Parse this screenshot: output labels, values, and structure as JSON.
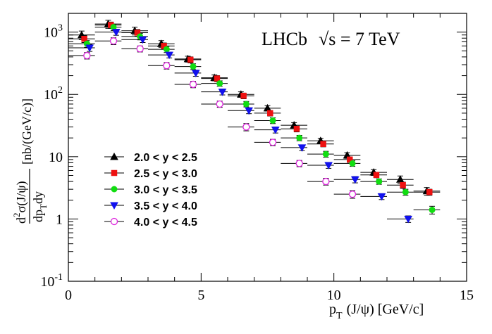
{
  "chart_data": {
    "type": "scatter",
    "title": "",
    "annotation": {
      "experiment": "LHCb",
      "energy": "√s = 7 TeV"
    },
    "xlabel": "p_T (J/ψ) [GeV/c]",
    "xlabel_parts": {
      "p": "p",
      "T": "T",
      "rest": "(J/ψ) [GeV/c]"
    },
    "ylabel_parts": {
      "num": "d",
      "num_sup": "2",
      "num_rest": "σ(J/ψ)",
      "den_p": "dp",
      "den_T": "T",
      "den_rest": "dy",
      "units": "[nb/(GeV/c)]"
    },
    "xlim": [
      0,
      15
    ],
    "ylim": [
      0.1,
      2000
    ],
    "yscale": "log",
    "x_ticks": [
      {
        "value": 0,
        "label": "0"
      },
      {
        "value": 5,
        "label": "5"
      },
      {
        "value": 10,
        "label": "10"
      },
      {
        "value": 15,
        "label": "15"
      }
    ],
    "y_ticks": [
      {
        "value": 0.1,
        "base": "10",
        "exp": "-1"
      },
      {
        "value": 1,
        "base": "1",
        "exp": ""
      },
      {
        "value": 10,
        "base": "10",
        "exp": ""
      },
      {
        "value": 100,
        "base": "10",
        "exp": "2"
      },
      {
        "value": 1000,
        "base": "10",
        "exp": "3"
      }
    ],
    "legend_position": "center-left",
    "series": [
      {
        "name": "2.0 < y < 2.5",
        "marker": "triangle-up",
        "color": "#000000",
        "filled": true,
        "points": [
          {
            "x": 0.5,
            "y": 900
          },
          {
            "x": 1.5,
            "y": 1350
          },
          {
            "x": 2.5,
            "y": 1050
          },
          {
            "x": 3.5,
            "y": 650
          },
          {
            "x": 4.5,
            "y": 370
          },
          {
            "x": 5.5,
            "y": 185
          },
          {
            "x": 6.5,
            "y": 100
          },
          {
            "x": 7.5,
            "y": 60
          },
          {
            "x": 8.5,
            "y": 32
          },
          {
            "x": 9.5,
            "y": 18
          },
          {
            "x": 10.5,
            "y": 10.5
          },
          {
            "x": 11.5,
            "y": 5.6
          },
          {
            "x": 12.5,
            "y": 4.3
          },
          {
            "x": 13.5,
            "y": 2.8
          }
        ],
        "errors": [
          {
            "ylo": 140,
            "yhi": 140
          },
          {
            "ylo": 200,
            "yhi": 200
          },
          {
            "ylo": 150,
            "yhi": 150
          },
          {
            "ylo": 80,
            "yhi": 80
          },
          {
            "ylo": 40,
            "yhi": 40
          },
          {
            "ylo": 20,
            "yhi": 20
          },
          {
            "ylo": 10,
            "yhi": 10
          },
          {
            "ylo": 6,
            "yhi": 6
          },
          {
            "ylo": 3.2,
            "yhi": 3.2
          },
          {
            "ylo": 1.8,
            "yhi": 1.8
          },
          {
            "ylo": 1.1,
            "yhi": 1.1
          },
          {
            "ylo": 0.6,
            "yhi": 0.6
          },
          {
            "ylo": 0.6,
            "yhi": 0.6
          },
          {
            "ylo": 0.4,
            "yhi": 0.4
          }
        ]
      },
      {
        "name": "2.5 < y < 3.0",
        "marker": "square",
        "color": "#ee1111",
        "filled": true,
        "points": [
          {
            "x": 0.6,
            "y": 780
          },
          {
            "x": 1.6,
            "y": 1300
          },
          {
            "x": 2.6,
            "y": 980
          },
          {
            "x": 3.6,
            "y": 600
          },
          {
            "x": 4.6,
            "y": 360
          },
          {
            "x": 5.6,
            "y": 180
          },
          {
            "x": 6.6,
            "y": 95
          },
          {
            "x": 7.6,
            "y": 50
          },
          {
            "x": 8.6,
            "y": 28
          },
          {
            "x": 9.6,
            "y": 16
          },
          {
            "x": 10.6,
            "y": 9
          },
          {
            "x": 11.6,
            "y": 5.1
          },
          {
            "x": 12.6,
            "y": 3.5
          },
          {
            "x": 13.6,
            "y": 2.7
          }
        ],
        "errors": [
          {
            "ylo": 100,
            "yhi": 100
          },
          {
            "ylo": 150,
            "yhi": 150
          },
          {
            "ylo": 120,
            "yhi": 120
          },
          {
            "ylo": 70,
            "yhi": 70
          },
          {
            "ylo": 40,
            "yhi": 40
          },
          {
            "ylo": 20,
            "yhi": 20
          },
          {
            "ylo": 10,
            "yhi": 10
          },
          {
            "ylo": 5,
            "yhi": 5
          },
          {
            "ylo": 3,
            "yhi": 3
          },
          {
            "ylo": 1.6,
            "yhi": 1.6
          },
          {
            "ylo": 0.9,
            "yhi": 0.9
          },
          {
            "ylo": 0.5,
            "yhi": 0.5
          },
          {
            "ylo": 0.4,
            "yhi": 0.4
          },
          {
            "ylo": 0.3,
            "yhi": 0.3
          }
        ]
      },
      {
        "name": "3.0 < y < 3.5",
        "marker": "circle",
        "color": "#11dd11",
        "filled": true,
        "points": [
          {
            "x": 0.7,
            "y": 650
          },
          {
            "x": 1.7,
            "y": 1200
          },
          {
            "x": 2.7,
            "y": 850
          },
          {
            "x": 3.7,
            "y": 530
          },
          {
            "x": 4.7,
            "y": 280
          },
          {
            "x": 5.7,
            "y": 150
          },
          {
            "x": 6.7,
            "y": 70
          },
          {
            "x": 7.7,
            "y": 38
          },
          {
            "x": 8.7,
            "y": 20
          },
          {
            "x": 9.7,
            "y": 11
          },
          {
            "x": 10.7,
            "y": 7.8
          },
          {
            "x": 11.7,
            "y": 4
          },
          {
            "x": 12.7,
            "y": 2.7
          },
          {
            "x": 13.7,
            "y": 1.4
          }
        ],
        "errors": [
          {
            "ylo": 80,
            "yhi": 80
          },
          {
            "ylo": 140,
            "yhi": 140
          },
          {
            "ylo": 100,
            "yhi": 100
          },
          {
            "ylo": 60,
            "yhi": 60
          },
          {
            "ylo": 30,
            "yhi": 30
          },
          {
            "ylo": 15,
            "yhi": 15
          },
          {
            "ylo": 7,
            "yhi": 7
          },
          {
            "ylo": 4,
            "yhi": 4
          },
          {
            "ylo": 2,
            "yhi": 2
          },
          {
            "ylo": 1.2,
            "yhi": 1.2
          },
          {
            "ylo": 0.8,
            "yhi": 0.8
          },
          {
            "ylo": 0.4,
            "yhi": 0.4
          },
          {
            "ylo": 0.3,
            "yhi": 0.3
          },
          {
            "ylo": 0.2,
            "yhi": 0.2
          }
        ]
      },
      {
        "name": "3.5 < y < 4.0",
        "marker": "triangle-down",
        "color": "#1111ee",
        "filled": true,
        "points": [
          {
            "x": 0.8,
            "y": 560
          },
          {
            "x": 1.8,
            "y": 1000
          },
          {
            "x": 2.8,
            "y": 760
          },
          {
            "x": 3.8,
            "y": 430
          },
          {
            "x": 4.8,
            "y": 220
          },
          {
            "x": 5.8,
            "y": 110
          },
          {
            "x": 6.8,
            "y": 55
          },
          {
            "x": 7.8,
            "y": 27
          },
          {
            "x": 8.8,
            "y": 14
          },
          {
            "x": 9.8,
            "y": 7.3
          },
          {
            "x": 10.8,
            "y": 4.3
          },
          {
            "x": 11.8,
            "y": 2.3
          },
          {
            "x": 12.8,
            "y": 1.0
          }
        ],
        "errors": [
          {
            "ylo": 70,
            "yhi": 70
          },
          {
            "ylo": 110,
            "yhi": 110
          },
          {
            "ylo": 80,
            "yhi": 80
          },
          {
            "ylo": 45,
            "yhi": 45
          },
          {
            "ylo": 25,
            "yhi": 25
          },
          {
            "ylo": 12,
            "yhi": 12
          },
          {
            "ylo": 6,
            "yhi": 6
          },
          {
            "ylo": 3,
            "yhi": 3
          },
          {
            "ylo": 1.5,
            "yhi": 1.5
          },
          {
            "ylo": 0.8,
            "yhi": 0.8
          },
          {
            "ylo": 0.5,
            "yhi": 0.5
          },
          {
            "ylo": 0.25,
            "yhi": 0.25
          },
          {
            "ylo": 0.12,
            "yhi": 0.12
          }
        ]
      },
      {
        "name": "4.0 < y < 4.5",
        "marker": "circle-open",
        "color": "#dd22dd",
        "filled": false,
        "points": [
          {
            "x": 0.7,
            "y": 420
          },
          {
            "x": 1.7,
            "y": 720
          },
          {
            "x": 2.7,
            "y": 540
          },
          {
            "x": 3.7,
            "y": 290
          },
          {
            "x": 4.7,
            "y": 145
          },
          {
            "x": 5.7,
            "y": 70
          },
          {
            "x": 6.7,
            "y": 30
          },
          {
            "x": 7.7,
            "y": 17
          },
          {
            "x": 8.7,
            "y": 7.8
          },
          {
            "x": 9.7,
            "y": 4.0
          },
          {
            "x": 10.7,
            "y": 2.5
          }
        ],
        "errors": [
          {
            "ylo": 50,
            "yhi": 50
          },
          {
            "ylo": 90,
            "yhi": 90
          },
          {
            "ylo": 60,
            "yhi": 60
          },
          {
            "ylo": 35,
            "yhi": 35
          },
          {
            "ylo": 17,
            "yhi": 17
          },
          {
            "ylo": 8,
            "yhi": 8
          },
          {
            "ylo": 4,
            "yhi": 4
          },
          {
            "ylo": 2,
            "yhi": 2
          },
          {
            "ylo": 0.9,
            "yhi": 0.9
          },
          {
            "ylo": 0.5,
            "yhi": 0.5
          },
          {
            "ylo": 0.35,
            "yhi": 0.35
          }
        ]
      }
    ],
    "bin_edges": [
      0,
      1,
      2,
      3,
      4,
      5,
      6,
      7,
      8,
      9,
      10,
      11,
      12,
      13,
      14
    ]
  }
}
